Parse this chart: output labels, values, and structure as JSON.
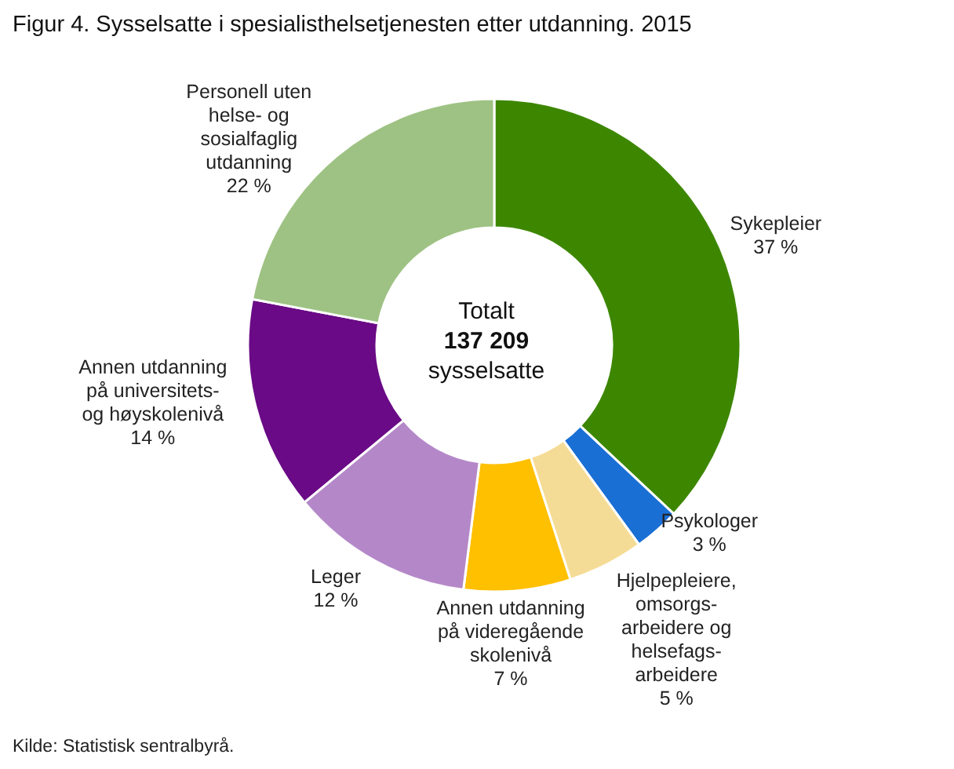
{
  "chart_data": {
    "type": "donut",
    "title": "Figur 4. Sysselsatte i spesialisthelsetjenesten etter utdanning. 2015",
    "categories": [
      "Sykepleier",
      "Psykologer",
      "Hjelpepleiere,\nomsorgs-\narbeidere  og\nhelsefags-\narbeidere",
      "Annen utdanning\npå videregående\nskolenivå",
      "Leger",
      "Annen utdanning\npå universitets-\nog høyskolenivå",
      "Personell uten\nhelse-  og\nsosialfaglig\nutdanning"
    ],
    "values": [
      37,
      3,
      5,
      7,
      12,
      14,
      22
    ],
    "value_labels": [
      "37 %",
      "3 %",
      "5 %",
      "7 %",
      "12 %",
      "14 %",
      "22 %"
    ],
    "colors": [
      "#3d8700",
      "#1a6fd4",
      "#f5dc96",
      "#ffc000",
      "#b488c8",
      "#6a0a86",
      "#9ec283"
    ],
    "legend": false,
    "annotations": [
      "Totalt\n137 209\nsysselsatte",
      "Kilde: Statistisk sentralbyrå."
    ]
  }
}
